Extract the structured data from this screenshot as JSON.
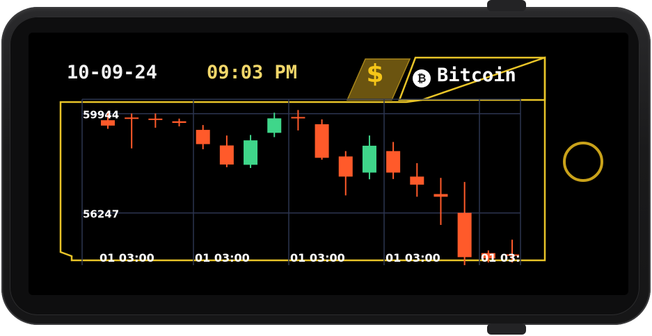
{
  "header": {
    "date": "10-09-24",
    "time": "09:03 PM",
    "currency_symbol": "$",
    "coin_icon": "bitcoin-icon",
    "coin_glyph": "₿",
    "coin_name": "Bitcoin"
  },
  "colors": {
    "accent_gold": "#e8c428",
    "time_yellow": "#f2d76a",
    "up_green": "#3fd68a",
    "down_red": "#ff5a2a",
    "grid_blue": "#2c3550"
  },
  "chart_data": {
    "type": "candlestick",
    "y_tick_labels": [
      "59944",
      "56247"
    ],
    "y_ticks": [
      59944,
      56247
    ],
    "x_tick_labels": [
      "01 03:00",
      "01 03:00",
      "01 03:00",
      "01 03:00",
      "01 03:"
    ],
    "grid": true,
    "candles": [
      {
        "open": 59700,
        "close": 59500,
        "high": 60020,
        "low": 59380
      },
      {
        "open": 59800,
        "close": 59760,
        "high": 59950,
        "low": 58650
      },
      {
        "open": 59760,
        "close": 59740,
        "high": 59950,
        "low": 59420
      },
      {
        "open": 59660,
        "close": 59600,
        "high": 59760,
        "low": 59470
      },
      {
        "open": 59340,
        "close": 58810,
        "high": 59520,
        "low": 58620
      },
      {
        "open": 58760,
        "close": 58050,
        "high": 59130,
        "low": 57950
      },
      {
        "open": 58040,
        "close": 58950,
        "high": 59150,
        "low": 57920
      },
      {
        "open": 59230,
        "close": 59770,
        "high": 59980,
        "low": 59070
      },
      {
        "open": 59820,
        "close": 59800,
        "high": 60080,
        "low": 59320
      },
      {
        "open": 59550,
        "close": 58300,
        "high": 59730,
        "low": 58230
      },
      {
        "open": 58350,
        "close": 57600,
        "high": 58550,
        "low": 56900
      },
      {
        "open": 57750,
        "close": 58750,
        "high": 59130,
        "low": 57500
      },
      {
        "open": 58550,
        "close": 57750,
        "high": 58890,
        "low": 57510
      },
      {
        "open": 57600,
        "close": 57300,
        "high": 58100,
        "low": 56850
      },
      {
        "open": 56950,
        "close": 56850,
        "high": 57550,
        "low": 55800
      },
      {
        "open": 56250,
        "close": 54600,
        "high": 57400,
        "low": 54300
      },
      {
        "open": 54750,
        "close": 54550,
        "high": 54850,
        "low": 54400
      },
      {
        "open": 54700,
        "close": 54650,
        "high": 55250,
        "low": 54400
      }
    ]
  }
}
